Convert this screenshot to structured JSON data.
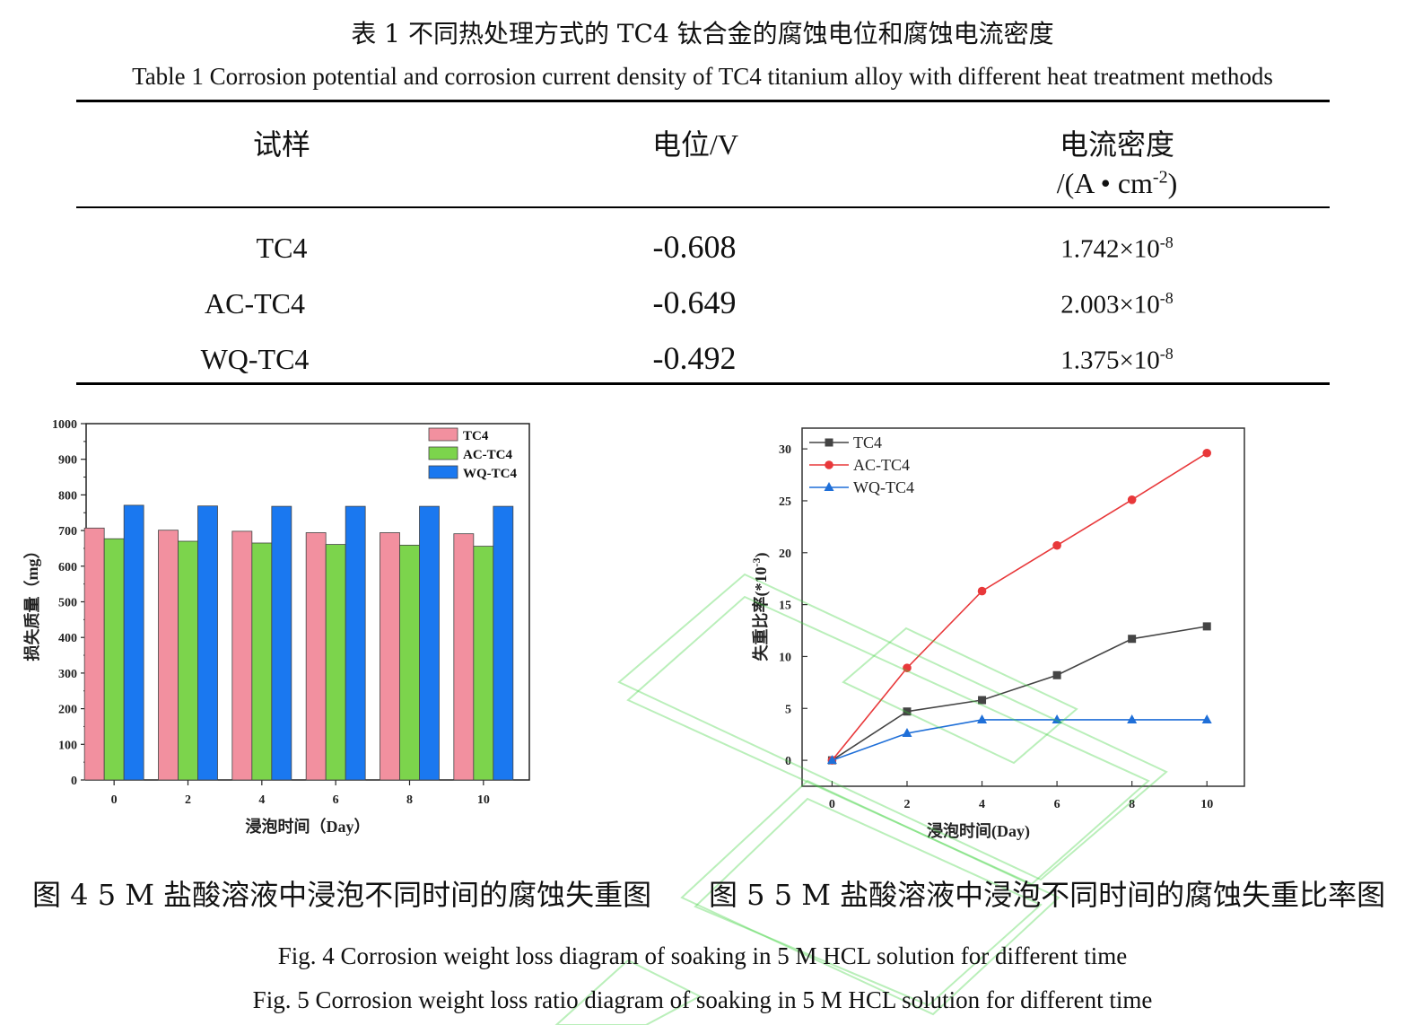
{
  "table": {
    "title_cn": "表 1  不同热处理方式的 TC4 钛合金的腐蚀电位和腐蚀电流密度",
    "title_en": "Table 1    Corrosion potential and corrosion current density of TC4 titanium alloy with different heat treatment methods",
    "headers": {
      "sample": "试样",
      "potential": "电位/V",
      "current_line1": "电流密度",
      "current_line2_pre": "/(A • cm",
      "current_line2_sup": "-2",
      "current_line2_post": ")"
    },
    "rows": [
      {
        "sample": "TC4",
        "potential": "-0.608",
        "current_base": "1.742×10",
        "current_exp": "-8"
      },
      {
        "sample": "AC-TC4",
        "potential": "-0.649",
        "current_base": "2.003×10",
        "current_exp": "-8"
      },
      {
        "sample": "WQ-TC4",
        "potential": "-0.492",
        "current_base": "1.375×10",
        "current_exp": "-8"
      }
    ]
  },
  "fig4_caption_cn": "图 4    5 M 盐酸溶液中浸泡不同时间的腐蚀失重图",
  "fig5_caption_cn": "图 5    5 M 盐酸溶液中浸泡不同时间的腐蚀失重比率图",
  "fig4_caption_en": "Fig. 4 Corrosion weight loss diagram of soaking in 5 M HCL solution for different time",
  "fig5_caption_en": "Fig. 5 Corrosion weight loss ratio diagram of soaking in 5 M HCL solution for different time",
  "chart_data": [
    {
      "type": "bar",
      "xlabel": "浸泡时间（Day）",
      "ylabel": "损失质量（mg）",
      "ylim": [
        0,
        1000
      ],
      "yticks": [
        0,
        100,
        200,
        300,
        400,
        500,
        600,
        700,
        800,
        900,
        1000
      ],
      "categories": [
        "0",
        "2",
        "4",
        "6",
        "8",
        "10"
      ],
      "legend_position": "top-right",
      "grid": false,
      "series": [
        {
          "name": "TC4",
          "color": "#f2909f",
          "values": [
            707,
            701,
            698,
            694,
            694,
            691
          ]
        },
        {
          "name": "AC-TC4",
          "color": "#7cd44c",
          "values": [
            677,
            670,
            665,
            661,
            659,
            656
          ]
        },
        {
          "name": "WQ-TC4",
          "color": "#1a78f0",
          "values": [
            771,
            769,
            768,
            768,
            768,
            768
          ]
        }
      ]
    },
    {
      "type": "line",
      "xlabel": "浸泡时间(Day)",
      "ylabel_pre": "失重比率(*10",
      "ylabel_sup": "-3",
      "ylabel_post": ")",
      "xlim": [
        -0.8,
        11
      ],
      "ylim": [
        -2.5,
        32
      ],
      "xticks": [
        0,
        2,
        4,
        6,
        8,
        10
      ],
      "yticks": [
        0,
        5,
        10,
        15,
        20,
        25,
        30
      ],
      "legend_position": "top-left",
      "grid": false,
      "x": [
        0,
        2,
        4,
        6,
        8,
        10
      ],
      "series": [
        {
          "name": "TC4",
          "color": "#444444",
          "marker": "square",
          "values": [
            0,
            4.7,
            5.8,
            8.2,
            11.7,
            12.9
          ]
        },
        {
          "name": "AC-TC4",
          "color": "#e8383a",
          "marker": "circle",
          "values": [
            0,
            8.9,
            16.3,
            20.7,
            25.1,
            29.6
          ]
        },
        {
          "name": "WQ-TC4",
          "color": "#1f6fd8",
          "marker": "triangle",
          "values": [
            0,
            2.6,
            3.9,
            3.9,
            3.9,
            3.9
          ]
        }
      ]
    }
  ]
}
